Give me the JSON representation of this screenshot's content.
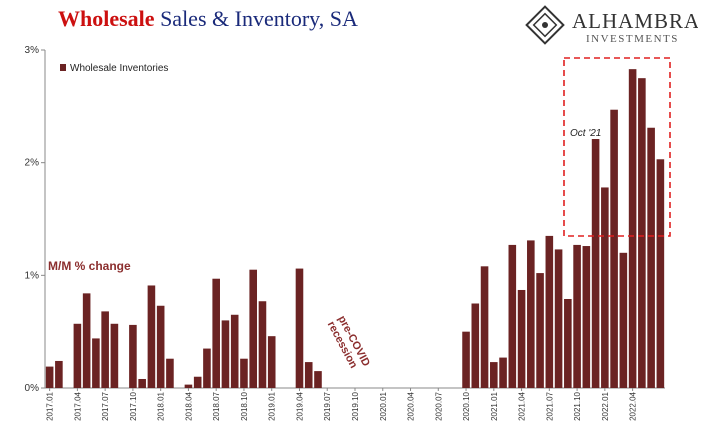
{
  "header": {
    "title_part1": "Wholesale",
    "title_part2": "Sales & Inventory, SA"
  },
  "logo": {
    "name": "ALHAMBRA",
    "tagline": "INVESTMENTS",
    "icon": "alhambra-diamond-logo-icon"
  },
  "colors": {
    "bar": "#6b2323",
    "annotation": "#8b2e2e",
    "highlight_box": "#e02020",
    "title_red": "#cc1010",
    "title_blue": "#1a2a7a"
  },
  "chart_data": {
    "type": "bar",
    "ylim": [
      0,
      3
    ],
    "y_ticks": [
      "0%",
      "1%",
      "2%",
      "3%"
    ],
    "grid": false,
    "legend_position": "top-left",
    "series": [
      {
        "name": "Wholesale Inventories",
        "values": [
          0.19,
          0.24,
          0,
          0.57,
          0.84,
          0.44,
          0.68,
          0.57,
          0,
          0.56,
          0.08,
          0.91,
          0.73,
          0.26,
          0,
          0.03,
          0.1,
          0.35,
          0.97,
          0.6,
          0.65,
          0.26,
          1.05,
          0.77,
          0.46,
          0,
          0,
          1.06,
          0.23,
          0.15,
          0,
          0,
          0,
          0,
          0,
          0,
          0,
          0,
          0,
          0,
          0,
          0,
          0,
          0,
          0,
          0.5,
          0.75,
          1.08,
          0.23,
          0.27,
          1.27,
          0.87,
          1.31,
          1.02,
          1.35,
          1.23,
          0.79,
          1.27,
          1.26,
          2.21,
          1.78,
          2.47,
          1.2,
          2.83,
          2.75,
          2.31,
          2.03
        ]
      }
    ],
    "x_tick_labels": [
      "2017.01",
      "2017.04",
      "2017.07",
      "2017.10",
      "2018.01",
      "2018.04",
      "2018.07",
      "2018.10",
      "2019.01",
      "2019.04",
      "2019.07",
      "2019.10",
      "2020.01",
      "2020.04",
      "2020.07",
      "2020.10",
      "2021.01",
      "2021.04",
      "2021.07",
      "2021.10",
      "2022.01",
      "2022.04"
    ],
    "annotations": {
      "mm_change": "M/M % change",
      "recession": "pre-COVID\nrecession",
      "oct21": "Oct '21"
    }
  }
}
